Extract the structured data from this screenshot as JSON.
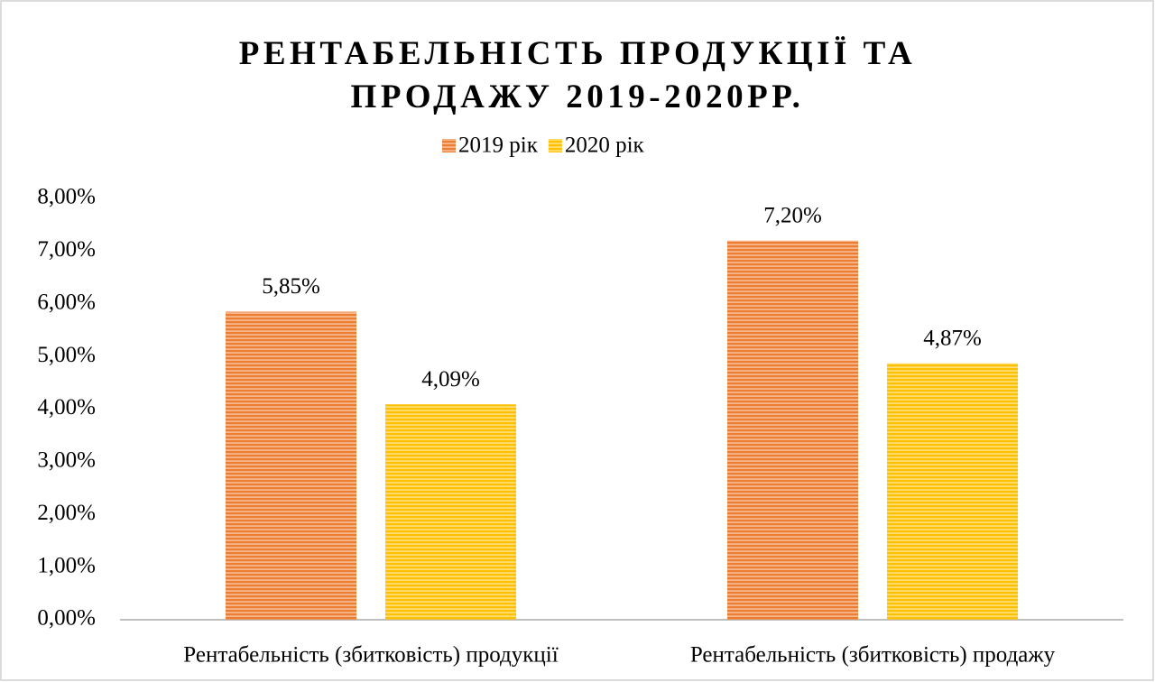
{
  "chart_data": {
    "type": "bar",
    "title": "РЕНТАБЕЛЬНІСТЬ ПРОДУКЦІЇ ТА ПРОДАЖУ 2019-2020РР.",
    "categories": [
      "Рентабельність (збитковість) продукції",
      "Рентабельність (збитковість) продажу"
    ],
    "series": [
      {
        "name": "2019 рік",
        "color": "#ed7d31",
        "values": [
          5.85,
          7.2
        ],
        "value_labels": [
          "5,85%",
          "7,20%"
        ]
      },
      {
        "name": "2020 рік",
        "color": "#ffc000",
        "values": [
          4.09,
          4.87
        ],
        "value_labels": [
          "4,09%",
          "4,87%"
        ]
      }
    ],
    "ylim": [
      0,
      8
    ],
    "yticks": [
      {
        "value": 0,
        "label": "0,00%"
      },
      {
        "value": 1,
        "label": "1,00%"
      },
      {
        "value": 2,
        "label": "2,00%"
      },
      {
        "value": 3,
        "label": "3,00%"
      },
      {
        "value": 4,
        "label": "4,00%"
      },
      {
        "value": 5,
        "label": "5,00%"
      },
      {
        "value": 6,
        "label": "6,00%"
      },
      {
        "value": 7,
        "label": "7,00%"
      },
      {
        "value": 8,
        "label": "8,00%"
      }
    ],
    "legend": "top",
    "grid": false
  }
}
